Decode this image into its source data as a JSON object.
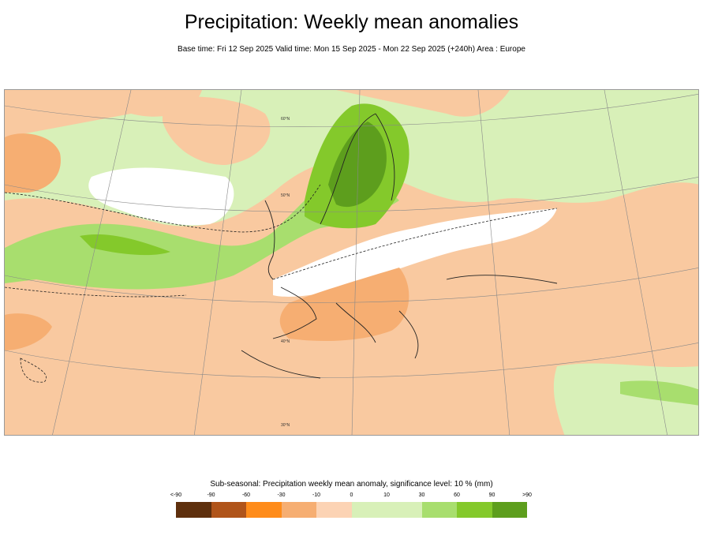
{
  "title": "Precipitation: Weekly mean anomalies",
  "subtitle": "Base time: Fri 12 Sep 2025 Valid time: Mon 15 Sep 2025 - Mon 22 Sep 2025 (+240h) Area : Europe",
  "map": {
    "area": "Europe",
    "graticule_labels": [
      "60°N",
      "50°N",
      "40°N",
      "30°N"
    ]
  },
  "legend": {
    "title": "Sub-seasonal: Precipitation weekly mean anomaly, significance level: 10 % (mm)",
    "ticks": [
      "<-90",
      "-90",
      "-60",
      "-30",
      "-10",
      "0",
      "10",
      "30",
      "60",
      "90",
      ">90"
    ],
    "colors": [
      "#5e2f0d",
      "#b0541a",
      "#ff8c1a",
      "#f6ae72",
      "#fcd3b4",
      "#ffffff",
      "#d8f0b8",
      "#a8de6e",
      "#84c92b",
      "#5d9e1d",
      "#4f6b18"
    ]
  }
}
